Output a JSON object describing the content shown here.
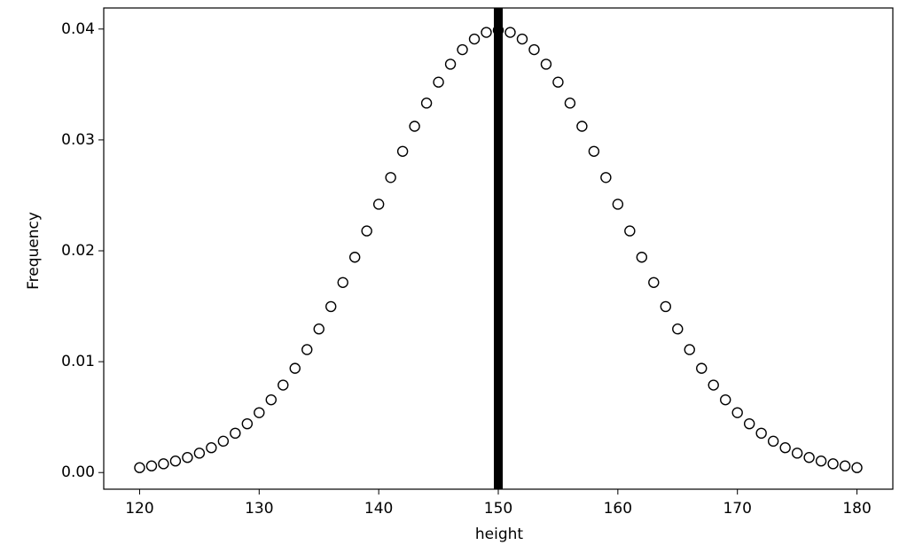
{
  "chart_data": {
    "type": "scatter",
    "x_label": "height",
    "y_label": "Frequency",
    "x": [
      120,
      121,
      122,
      123,
      124,
      125,
      126,
      127,
      128,
      129,
      130,
      131,
      132,
      133,
      134,
      135,
      136,
      137,
      138,
      139,
      140,
      141,
      142,
      143,
      144,
      145,
      146,
      147,
      148,
      149,
      150,
      151,
      152,
      153,
      154,
      155,
      156,
      157,
      158,
      159,
      160,
      161,
      162,
      163,
      164,
      165,
      166,
      167,
      168,
      169,
      170,
      171,
      172,
      173,
      174,
      175,
      176,
      177,
      178,
      179,
      180
    ],
    "values": [
      0.00044,
      0.0006,
      0.00079,
      0.00104,
      0.00136,
      0.00175,
      0.00224,
      0.00283,
      0.00355,
      0.0044,
      0.0054,
      0.00656,
      0.00789,
      0.0094,
      0.01109,
      0.01295,
      0.01497,
      0.01714,
      0.01942,
      0.02179,
      0.0242,
      0.02661,
      0.02897,
      0.03123,
      0.03332,
      0.03521,
      0.03683,
      0.03814,
      0.0391,
      0.0397,
      0.03989,
      0.0397,
      0.0391,
      0.03814,
      0.03683,
      0.03521,
      0.03332,
      0.03123,
      0.02897,
      0.02661,
      0.0242,
      0.02179,
      0.01942,
      0.01714,
      0.01497,
      0.01295,
      0.01109,
      0.0094,
      0.00789,
      0.00656,
      0.0054,
      0.0044,
      0.00355,
      0.00283,
      0.00224,
      0.00175,
      0.00136,
      0.00104,
      0.00079,
      0.0006,
      0.00044
    ],
    "marker_color": "#000000",
    "vline": 150,
    "vline_color": "#000000",
    "xlim": [
      117,
      183
    ],
    "xticks": [
      120,
      130,
      140,
      150,
      160,
      170,
      180
    ],
    "ylim": [
      -0.0015,
      0.0419
    ],
    "yticks": [
      {
        "value": 0,
        "label": "0.00"
      },
      0.01,
      0.02,
      0.03,
      0.04
    ],
    "grid": false
  }
}
